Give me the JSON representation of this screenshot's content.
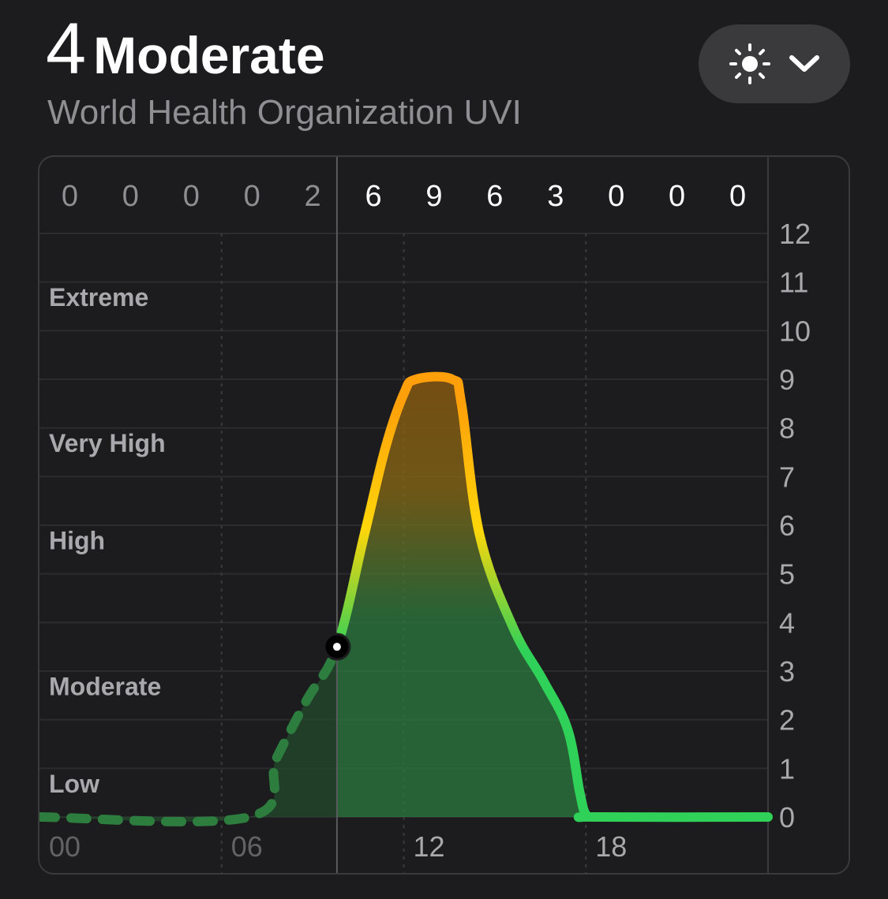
{
  "header": {
    "uv_value": "4",
    "uv_category": "Moderate",
    "subtitle": "World Health Organization UVI"
  },
  "picker": {
    "icon": "sun-icon",
    "chevron": "chevron-down-icon"
  },
  "chart_data": {
    "type": "area",
    "title": "",
    "xlabel": "",
    "ylabel": "",
    "x_range": [
      0,
      24
    ],
    "ylim": [
      0,
      12
    ],
    "y_ticks": [
      "0",
      "1",
      "2",
      "3",
      "4",
      "5",
      "6",
      "7",
      "8",
      "9",
      "10",
      "11",
      "12"
    ],
    "x_ticks": [
      {
        "label": "00",
        "hour": 0
      },
      {
        "label": "06",
        "hour": 6
      },
      {
        "label": "12",
        "hour": 12
      },
      {
        "label": "18",
        "hour": 18
      }
    ],
    "current_hour": 9.8,
    "current_value": 3.5,
    "hourly_header": [
      {
        "label": "0",
        "hour": 1
      },
      {
        "label": "0",
        "hour": 3
      },
      {
        "label": "0",
        "hour": 5
      },
      {
        "label": "0",
        "hour": 7
      },
      {
        "label": "2",
        "hour": 9
      },
      {
        "label": "6",
        "hour": 11
      },
      {
        "label": "9",
        "hour": 13
      },
      {
        "label": "6",
        "hour": 15
      },
      {
        "label": "3",
        "hour": 17
      },
      {
        "label": "0",
        "hour": 19
      },
      {
        "label": "0",
        "hour": 21
      },
      {
        "label": "0",
        "hour": 23
      }
    ],
    "categories": [
      {
        "label": "Low",
        "value": 0.7
      },
      {
        "label": "Moderate",
        "value": 2.7
      },
      {
        "label": "High",
        "value": 5.7
      },
      {
        "label": "Very High",
        "value": 7.7
      },
      {
        "label": "Extreme",
        "value": 10.7
      }
    ],
    "series": [
      {
        "x": [
          0,
          6.9,
          7.8,
          8.8,
          9.8,
          10.7,
          11.4,
          12.0,
          12.4,
          13.6,
          13.9,
          14.5,
          15.6,
          16.6,
          17.4,
          17.8,
          18.0,
          18.3,
          24
        ],
        "y": [
          0,
          0,
          1.2,
          2.4,
          3.5,
          5.8,
          7.6,
          8.7,
          9.0,
          9.0,
          8.5,
          5.8,
          3.9,
          2.8,
          1.8,
          0.5,
          0.05,
          0,
          0
        ]
      }
    ],
    "colors": {
      "green": "#30d158",
      "yellow": "#ffd60a",
      "orange": "#ff9f0a",
      "past_line": "#2d7d3e"
    }
  }
}
